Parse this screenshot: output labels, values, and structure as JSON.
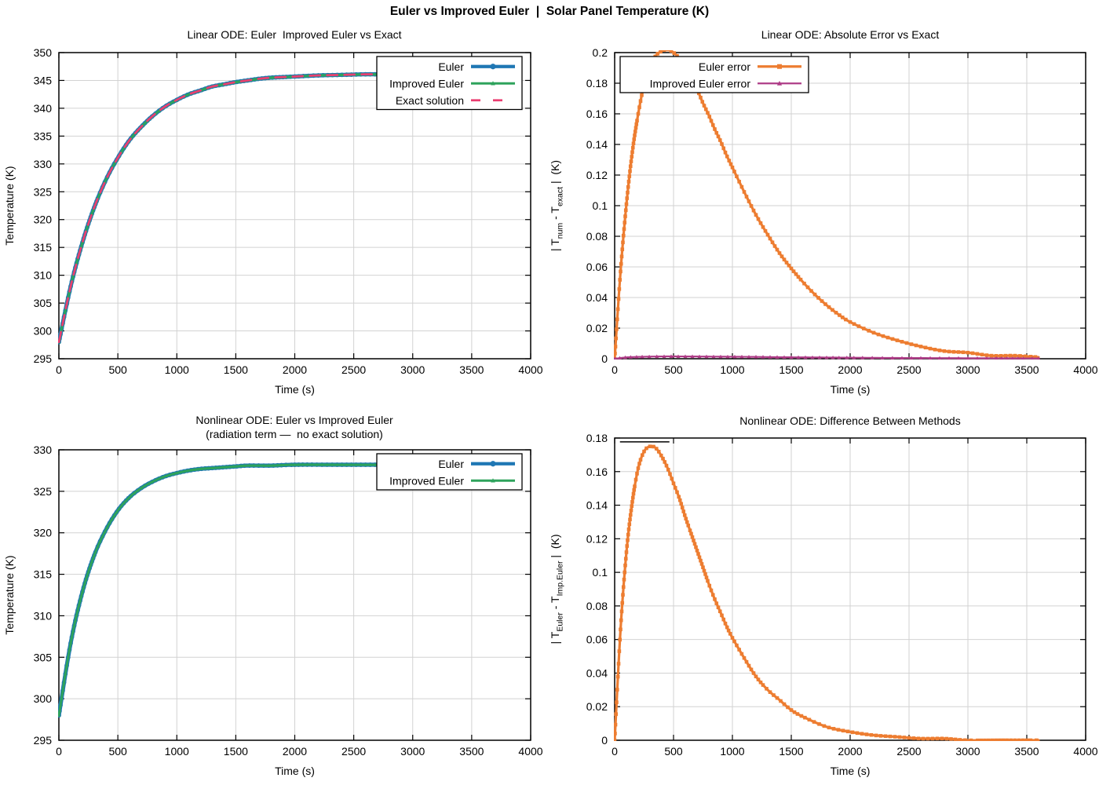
{
  "page_title": "Euler vs Improved Euler  |  Solar Panel Temperature (K)",
  "colors": {
    "euler_blue": "#1f77b4",
    "improved_green": "#2ea35c",
    "exact_pink": "#ea3e71",
    "error_orange": "#ed7d31",
    "improved_error_purple": "#ae3c87",
    "grid": "#d2d2d2",
    "axis": "#000000"
  },
  "chart_data": [
    {
      "id": "linear-solution",
      "type": "line",
      "title_lines": [
        "Linear ODE: Euler  Improved Euler vs Exact"
      ],
      "xlabel": "Time (s)",
      "ylabel_parts": [
        {
          "t": "Temperature (K)"
        }
      ],
      "xlim": [
        0,
        4000
      ],
      "ylim": [
        295,
        350
      ],
      "xticks": {
        "values": [
          0,
          500,
          1000,
          1500,
          2000,
          2500,
          3000,
          3500,
          4000
        ],
        "labels": [
          "0",
          "500",
          "1000",
          "1500",
          "2000",
          "2500",
          "3000",
          "3500",
          "4000"
        ]
      },
      "yticks": {
        "values": [
          295,
          300,
          305,
          310,
          315,
          320,
          325,
          330,
          335,
          340,
          345,
          350
        ],
        "labels": [
          "295",
          "300",
          "305",
          "310",
          "315",
          "320",
          "325",
          "330",
          "335",
          "340",
          "345",
          "350"
        ]
      },
      "legend_labels": [
        "Euler",
        "Improved Euler",
        "Exact solution"
      ],
      "series": [
        {
          "name": "Euler",
          "color": "#1f77b4",
          "width": 5.2,
          "marker": "circle",
          "msize": 2.9,
          "mspace": 4,
          "x": [
            0,
            100,
            200,
            300,
            400,
            500,
            600,
            700,
            800,
            900,
            1000,
            1100,
            1200,
            1300,
            1400,
            1500,
            1600,
            1700,
            1800,
            1900,
            2000,
            2200,
            2400,
            2600,
            2800,
            3000,
            3200,
            3400,
            3600
          ],
          "y": [
            298.0,
            308.0,
            315.9,
            322.2,
            327.2,
            331.1,
            334.3,
            336.7,
            338.7,
            340.3,
            341.5,
            342.5,
            343.2,
            343.9,
            344.3,
            344.7,
            345.0,
            345.3,
            345.5,
            345.6,
            345.7,
            345.9,
            346.0,
            346.1,
            346.1,
            346.2,
            346.2,
            346.2,
            346.2
          ]
        },
        {
          "name": "Improved Euler",
          "color": "#2ea35c",
          "width": 2.9,
          "marker": "triangle",
          "msize": 2.3,
          "mspace": 4,
          "x": [
            0,
            100,
            200,
            300,
            400,
            500,
            600,
            700,
            800,
            900,
            1000,
            1100,
            1200,
            1300,
            1400,
            1500,
            1600,
            1700,
            1800,
            1900,
            2000,
            2200,
            2400,
            2600,
            2800,
            3000,
            3200,
            3400,
            3600
          ],
          "y": [
            298.0,
            308.0,
            315.9,
            322.2,
            327.2,
            331.1,
            334.3,
            336.7,
            338.7,
            340.3,
            341.5,
            342.5,
            343.2,
            343.9,
            344.3,
            344.7,
            345.0,
            345.3,
            345.5,
            345.6,
            345.7,
            345.9,
            346.0,
            346.1,
            346.1,
            346.2,
            346.2,
            346.2,
            346.2
          ]
        },
        {
          "name": "Exact solution",
          "color": "#ea3e71",
          "width": 2.7,
          "dash": [
            13,
            9
          ],
          "x": [
            0,
            100,
            200,
            300,
            400,
            500,
            600,
            700,
            800,
            900,
            1000,
            1100,
            1200,
            1300,
            1400,
            1500,
            1600,
            1700,
            1800,
            1900,
            2000,
            2200,
            2400,
            2600,
            2800,
            3000,
            3200,
            3400,
            3600
          ],
          "y": [
            298.0,
            308.0,
            315.9,
            322.2,
            327.2,
            331.1,
            334.3,
            336.7,
            338.7,
            340.3,
            341.5,
            342.5,
            343.2,
            343.9,
            344.3,
            344.7,
            345.0,
            345.3,
            345.5,
            345.6,
            345.7,
            345.9,
            346.0,
            346.1,
            346.1,
            346.2,
            346.2,
            346.2,
            346.2
          ]
        }
      ]
    },
    {
      "id": "linear-error",
      "type": "line",
      "title_lines": [
        "Linear ODE: Absolute Error vs Exact"
      ],
      "xlabel": "Time (s)",
      "ylabel_parts": [
        {
          "t": "| T"
        },
        {
          "t": "num",
          "sub": true
        },
        {
          "t": " - T"
        },
        {
          "t": "exact",
          "sub": true
        },
        {
          "t": " |  (K)"
        }
      ],
      "xlim": [
        0,
        4000
      ],
      "ylim": [
        0,
        0.2
      ],
      "xticks": {
        "values": [
          0,
          500,
          1000,
          1500,
          2000,
          2500,
          3000,
          3500,
          4000
        ],
        "labels": [
          "0",
          "500",
          "1000",
          "1500",
          "2000",
          "2500",
          "3000",
          "3500",
          "4000"
        ]
      },
      "yticks": {
        "values": [
          0,
          0.02,
          0.04,
          0.06,
          0.08,
          0.1,
          0.12,
          0.14,
          0.16,
          0.18,
          0.2
        ],
        "labels": [
          "0",
          "0.02",
          "0.04",
          "0.06",
          "0.08",
          "0.1",
          "0.12",
          "0.14",
          "0.16",
          "0.18",
          "0.2"
        ]
      },
      "legend_labels": [
        "Euler error",
        "Improved Euler error"
      ],
      "series": [
        {
          "name": "Euler error",
          "color": "#ed7d31",
          "width": 3.2,
          "marker": "square",
          "msize": 2.3,
          "mspace": 4.5,
          "x": [
            0,
            50,
            100,
            150,
            200,
            250,
            300,
            350,
            400,
            450,
            500,
            550,
            600,
            650,
            700,
            750,
            800,
            850,
            900,
            950,
            1000,
            1100,
            1200,
            1300,
            1400,
            1500,
            1600,
            1700,
            1800,
            1900,
            2000,
            2200,
            2400,
            2600,
            2800,
            3000,
            3200,
            3400,
            3600
          ],
          "y": [
            0.0,
            0.057,
            0.101,
            0.135,
            0.16,
            0.179,
            0.191,
            0.198,
            0.201,
            0.202,
            0.2,
            0.196,
            0.19,
            0.183,
            0.176,
            0.167,
            0.159,
            0.15,
            0.142,
            0.133,
            0.125,
            0.109,
            0.094,
            0.081,
            0.069,
            0.059,
            0.05,
            0.042,
            0.035,
            0.029,
            0.024,
            0.017,
            0.012,
            0.008,
            0.005,
            0.004,
            0.002,
            0.002,
            0.001
          ]
        },
        {
          "name": "Improved Euler error",
          "color": "#ae3c87",
          "width": 2.2,
          "marker": "triangle",
          "msize": 2.6,
          "mspace": 6.5,
          "x": [
            0,
            100,
            200,
            400,
            600,
            800,
            1000,
            1200,
            1400,
            1600,
            1800,
            2000,
            2400,
            2800,
            3200,
            3600
          ],
          "y": [
            0.0,
            0.0009,
            0.0012,
            0.0015,
            0.0015,
            0.0014,
            0.0013,
            0.0012,
            0.001,
            0.0009,
            0.0008,
            0.0007,
            0.0005,
            0.0004,
            0.0003,
            0.0002
          ]
        }
      ]
    },
    {
      "id": "nonlinear-solution",
      "type": "line",
      "title_lines": [
        "Nonlinear ODE: Euler vs Improved Euler",
        "(radiation term —  no exact solution)"
      ],
      "xlabel": "Time (s)",
      "ylabel_parts": [
        {
          "t": "Temperature (K)"
        }
      ],
      "xlim": [
        0,
        4000
      ],
      "ylim": [
        295,
        330
      ],
      "xticks": {
        "values": [
          0,
          500,
          1000,
          1500,
          2000,
          2500,
          3000,
          3500,
          4000
        ],
        "labels": [
          "0",
          "500",
          "1000",
          "1500",
          "2000",
          "2500",
          "3000",
          "3500",
          "4000"
        ]
      },
      "yticks": {
        "values": [
          295,
          300,
          305,
          310,
          315,
          320,
          325,
          330
        ],
        "labels": [
          "295",
          "300",
          "305",
          "310",
          "315",
          "320",
          "325",
          "330"
        ]
      },
      "legend_labels": [
        "Euler",
        "Improved Euler"
      ],
      "series": [
        {
          "name": "Euler",
          "color": "#1f77b4",
          "width": 5.2,
          "marker": "circle",
          "msize": 2.9,
          "mspace": 4,
          "x": [
            0,
            100,
            200,
            300,
            400,
            500,
            600,
            700,
            800,
            900,
            1000,
            1100,
            1200,
            1300,
            1400,
            1500,
            1600,
            1800,
            2000,
            2400,
            2800,
            3200,
            3600
          ],
          "y": [
            298.0,
            306.7,
            312.9,
            317.3,
            320.4,
            322.7,
            324.3,
            325.4,
            326.2,
            326.8,
            327.2,
            327.5,
            327.7,
            327.8,
            327.9,
            328.0,
            328.1,
            328.1,
            328.2,
            328.2,
            328.2,
            328.2,
            328.2
          ]
        },
        {
          "name": "Improved Euler",
          "color": "#2ea35c",
          "width": 2.9,
          "marker": "triangle",
          "msize": 2.3,
          "mspace": 4,
          "x": [
            0,
            100,
            200,
            300,
            400,
            500,
            600,
            700,
            800,
            900,
            1000,
            1100,
            1200,
            1300,
            1400,
            1500,
            1600,
            1800,
            2000,
            2400,
            2800,
            3200,
            3600
          ],
          "y": [
            298.0,
            306.7,
            312.9,
            317.3,
            320.4,
            322.7,
            324.3,
            325.4,
            326.2,
            326.8,
            327.2,
            327.5,
            327.7,
            327.8,
            327.9,
            328.0,
            328.1,
            328.1,
            328.2,
            328.2,
            328.2,
            328.2,
            328.2
          ]
        }
      ]
    },
    {
      "id": "nonlinear-difference",
      "type": "line",
      "title_lines": [
        "Nonlinear ODE: Difference Between Methods"
      ],
      "xlabel": "Time (s)",
      "ylabel_parts": [
        {
          "t": "| T"
        },
        {
          "t": "Euler",
          "sub": true
        },
        {
          "t": " - T"
        },
        {
          "t": "Imp.Euler",
          "sub": true
        },
        {
          "t": " |  (K)"
        }
      ],
      "xlim": [
        0,
        4000
      ],
      "ylim": [
        0,
        0.18
      ],
      "xticks": {
        "values": [
          0,
          500,
          1000,
          1500,
          2000,
          2500,
          3000,
          3500,
          4000
        ],
        "labels": [
          "0",
          "500",
          "1000",
          "1500",
          "2000",
          "2500",
          "3000",
          "3500",
          "4000"
        ]
      },
      "yticks": {
        "values": [
          0,
          0.02,
          0.04,
          0.06,
          0.08,
          0.1,
          0.12,
          0.14,
          0.16,
          0.18
        ],
        "labels": [
          "0",
          "0.02",
          "0.04",
          "0.06",
          "0.08",
          "0.1",
          "0.12",
          "0.14",
          "0.16",
          "0.18"
        ]
      },
      "legend_labels": [],
      "annotation": {
        "x1": 45,
        "x2": 465,
        "y": 0.1777
      },
      "series": [
        {
          "name": "Euler - Improved Euler difference",
          "color": "#ed7d31",
          "width": 3.2,
          "marker": "square",
          "msize": 2.3,
          "mspace": 4.5,
          "x": [
            0,
            50,
            100,
            150,
            200,
            250,
            300,
            350,
            400,
            450,
            500,
            550,
            600,
            650,
            700,
            750,
            800,
            850,
            900,
            950,
            1000,
            1100,
            1200,
            1300,
            1400,
            1500,
            1600,
            1800,
            2000,
            2200,
            2400,
            2600,
            2800,
            3000,
            3300,
            3600
          ],
          "y": [
            0.0,
            0.066,
            0.112,
            0.142,
            0.162,
            0.172,
            0.175,
            0.174,
            0.169,
            0.162,
            0.153,
            0.144,
            0.133,
            0.123,
            0.113,
            0.103,
            0.093,
            0.084,
            0.076,
            0.068,
            0.061,
            0.049,
            0.038,
            0.03,
            0.024,
            0.018,
            0.014,
            0.008,
            0.005,
            0.003,
            0.002,
            0.001,
            0.001,
            0.0,
            0.0,
            0.0
          ]
        }
      ]
    }
  ]
}
